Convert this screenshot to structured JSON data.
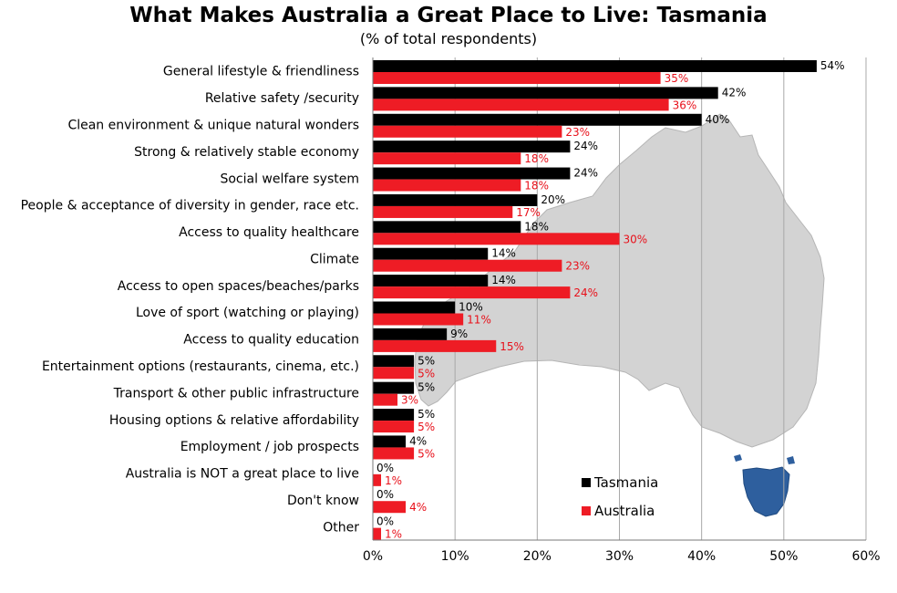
{
  "chart_data": {
    "type": "bar",
    "orientation": "horizontal",
    "title": "What Makes Australia a Great Place to Live: Tasmania",
    "subtitle": "(% of total respondents)",
    "categories": [
      "General lifestyle & friendliness",
      "Relative safety /security",
      "Clean environment & unique natural wonders",
      "Strong & relatively stable economy",
      "Social welfare system",
      "People & acceptance of diversity in gender, race etc.",
      "Access to quality healthcare",
      "Climate",
      "Access to open spaces/beaches/parks",
      "Love of sport (watching or playing)",
      "Access to quality education",
      "Entertainment options (restaurants, cinema, etc.)",
      "Transport & other public infrastructure",
      "Housing options & relative affordability",
      "Employment / job prospects",
      "Australia is NOT a great place to live",
      "Don't know",
      "Other"
    ],
    "series": [
      {
        "name": "Tasmania",
        "color": "#000000",
        "values": [
          54,
          42,
          40,
          24,
          24,
          20,
          18,
          14,
          14,
          10,
          9,
          5,
          5,
          5,
          4,
          0,
          0,
          0
        ],
        "labels": [
          "54%",
          "42%",
          "40%",
          "24%",
          "24%",
          "20%",
          "18%",
          "14%",
          "14%",
          "10%",
          "9%",
          "5%",
          "5%",
          "5%",
          "4%",
          "0%",
          "0%",
          "0%"
        ]
      },
      {
        "name": "Australia",
        "color": "#ee1c25",
        "values": [
          35,
          36,
          23,
          18,
          18,
          17,
          30,
          23,
          24,
          11,
          15,
          5,
          3,
          5,
          5,
          1,
          4,
          1
        ],
        "labels": [
          "35%",
          "36%",
          "23%",
          "18%",
          "18%",
          "17%",
          "30%",
          "23%",
          "24%",
          "11%",
          "15%",
          "5%",
          "3%",
          "5%",
          "5%",
          "1%",
          "4%",
          "1%"
        ]
      }
    ],
    "xlim": [
      0,
      60
    ],
    "xticks": [
      "0%",
      "10%",
      "20%",
      "30%",
      "40%",
      "50%",
      "60%"
    ],
    "grid": true,
    "legend_position": "bottom-right",
    "background_image": "australia-map",
    "colors": {
      "map_fill": "#d3d3d3",
      "tasmania_fill": "#2e5f9e"
    }
  }
}
